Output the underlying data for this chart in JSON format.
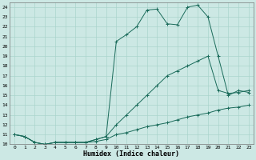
{
  "xlabel": "Humidex (Indice chaleur)",
  "background_color": "#cce8e4",
  "grid_color": "#aad4cc",
  "line_color": "#1a6b5a",
  "xlim": [
    -0.5,
    23.5
  ],
  "ylim": [
    10,
    24.5
  ],
  "xticks": [
    0,
    1,
    2,
    3,
    4,
    5,
    6,
    7,
    8,
    9,
    10,
    11,
    12,
    13,
    14,
    15,
    16,
    17,
    18,
    19,
    20,
    21,
    22,
    23
  ],
  "yticks": [
    10,
    11,
    12,
    13,
    14,
    15,
    16,
    17,
    18,
    19,
    20,
    21,
    22,
    23,
    24
  ],
  "series1_x": [
    0,
    1,
    2,
    3,
    4,
    5,
    6,
    7,
    8,
    9,
    10,
    11,
    12,
    13,
    14,
    15,
    16,
    17,
    18,
    19,
    20,
    21,
    22,
    23
  ],
  "series1_y": [
    11.0,
    10.8,
    10.2,
    10.0,
    10.2,
    10.2,
    10.2,
    10.2,
    10.3,
    10.5,
    11.0,
    11.2,
    11.5,
    11.8,
    12.0,
    12.2,
    12.5,
    12.8,
    13.0,
    13.2,
    13.5,
    13.7,
    13.8,
    14.0
  ],
  "series2_x": [
    0,
    1,
    2,
    3,
    4,
    5,
    6,
    7,
    8,
    9,
    10,
    11,
    12,
    13,
    14,
    15,
    16,
    17,
    18,
    19,
    20,
    21,
    22,
    23
  ],
  "series2_y": [
    11.0,
    10.8,
    10.2,
    10.0,
    10.2,
    10.2,
    10.2,
    10.2,
    10.5,
    10.8,
    12.0,
    13.0,
    14.0,
    15.0,
    16.0,
    17.0,
    17.5,
    18.0,
    18.5,
    19.0,
    15.5,
    15.2,
    15.3,
    15.5
  ],
  "series3_x": [
    0,
    1,
    2,
    3,
    4,
    5,
    6,
    7,
    8,
    9,
    10,
    11,
    12,
    13,
    14,
    15,
    16,
    17,
    18,
    19,
    20,
    21,
    22,
    23
  ],
  "series3_y": [
    11.0,
    10.8,
    10.2,
    10.0,
    10.2,
    10.2,
    10.2,
    10.2,
    10.5,
    10.8,
    20.5,
    21.2,
    22.0,
    23.7,
    23.8,
    22.3,
    22.2,
    24.0,
    24.2,
    23.0,
    19.0,
    15.0,
    15.5,
    15.3
  ]
}
